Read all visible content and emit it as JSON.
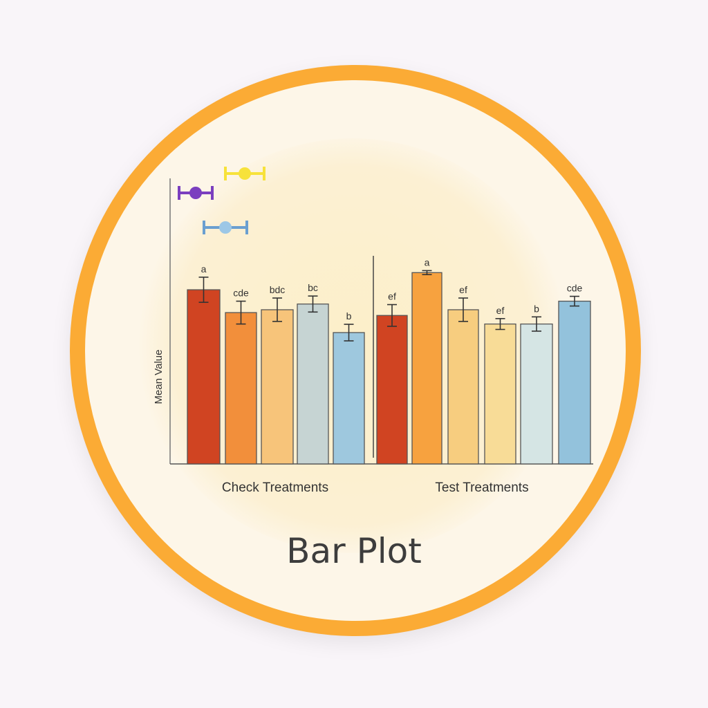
{
  "title": "Bar Plot",
  "chart_data": {
    "type": "bar",
    "ylabel": "Mean Value",
    "ylim": [
      0,
      100
    ],
    "grid": false,
    "groups": [
      {
        "label": "Check Treatments",
        "values": [
          61,
          53,
          54,
          56,
          46
        ],
        "errors": [
          4.4,
          4.0,
          4.1,
          2.8,
          2.9
        ],
        "letters": [
          "a",
          "cde",
          "bdc",
          "bc",
          "b"
        ],
        "colors": [
          "#d04422",
          "#f28f3b",
          "#f7c47a",
          "#c6d4d3",
          "#9ec8de"
        ]
      },
      {
        "label": "Test Treatments",
        "values": [
          52,
          67,
          54,
          49,
          49,
          57
        ],
        "errors": [
          3.8,
          0.7,
          4.1,
          1.9,
          2.5,
          1.7
        ],
        "letters": [
          "ef",
          "a",
          "ef",
          "ef",
          "b",
          "cde"
        ],
        "colors": [
          "#d04422",
          "#f7a23f",
          "#f7cd7f",
          "#f8dc97",
          "#d5e5e4",
          "#93c2dc"
        ]
      }
    ],
    "legend_markers": [
      {
        "icon": "dumbbell-marker",
        "color": "#7b3fbf"
      },
      {
        "icon": "dumbbell-marker",
        "color": "#f7e23a"
      },
      {
        "icon": "dumbbell-marker",
        "color": "#6a9fd0"
      }
    ]
  }
}
